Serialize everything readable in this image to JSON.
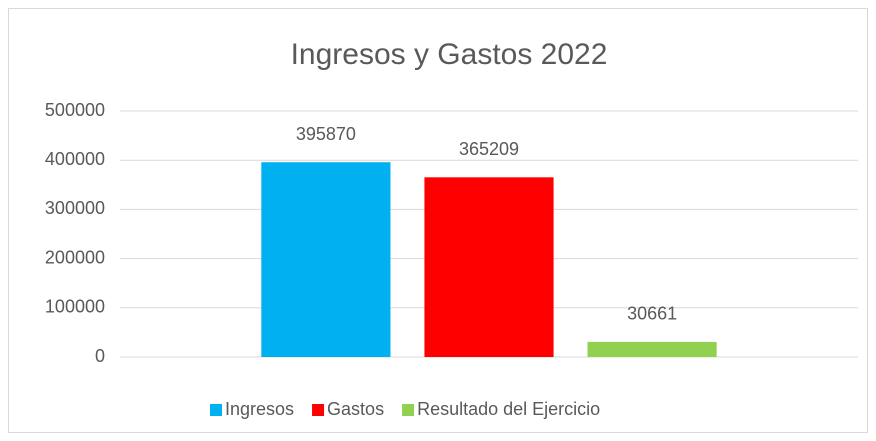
{
  "chart_data": {
    "type": "bar",
    "title": "Ingresos y Gastos 2022",
    "categories": [
      null
    ],
    "series": [
      {
        "name": "Ingresos",
        "color": "#00b0f0",
        "values": [
          395870
        ]
      },
      {
        "name": "Gastos",
        "color": "#ff0000",
        "values": [
          365209
        ]
      },
      {
        "name": "Resultado del Ejercicio",
        "color": "#92d050",
        "values": [
          30661
        ]
      }
    ],
    "ylim": [
      0,
      500000
    ],
    "yticks": [
      0,
      100000,
      200000,
      300000,
      400000,
      500000
    ],
    "grid": true,
    "legend": "bottom"
  }
}
